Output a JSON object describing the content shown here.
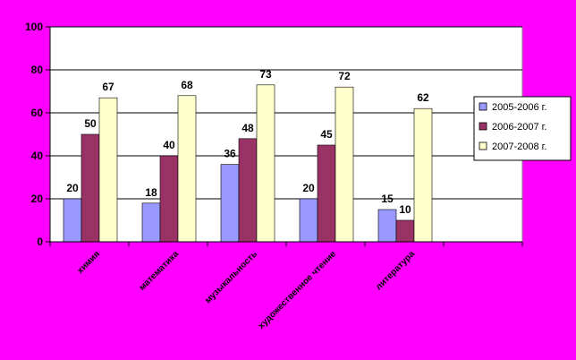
{
  "chart_data": {
    "type": "bar",
    "categories": [
      "химия",
      "математика",
      "музыкальность",
      "художественное чтение",
      "литература"
    ],
    "series": [
      {
        "name": "2005-2006 г.",
        "values": [
          20,
          18,
          36,
          20,
          15
        ],
        "color": "#9999ff"
      },
      {
        "name": "2006-2007 г.",
        "values": [
          50,
          40,
          48,
          45,
          10
        ],
        "color": "#993366"
      },
      {
        "name": "2007-2008 г.",
        "values": [
          67,
          68,
          73,
          72,
          62
        ],
        "color": "#ffffcc"
      }
    ],
    "category_slots": 6,
    "ylim": [
      0,
      100
    ],
    "yticks": [
      0,
      20,
      40,
      60,
      80,
      100
    ],
    "grid": true,
    "legend_position": "right",
    "title": "",
    "xlabel": "",
    "ylabel": "",
    "background_color": "#ff00ff",
    "plot_background_color": "#ffffff"
  }
}
